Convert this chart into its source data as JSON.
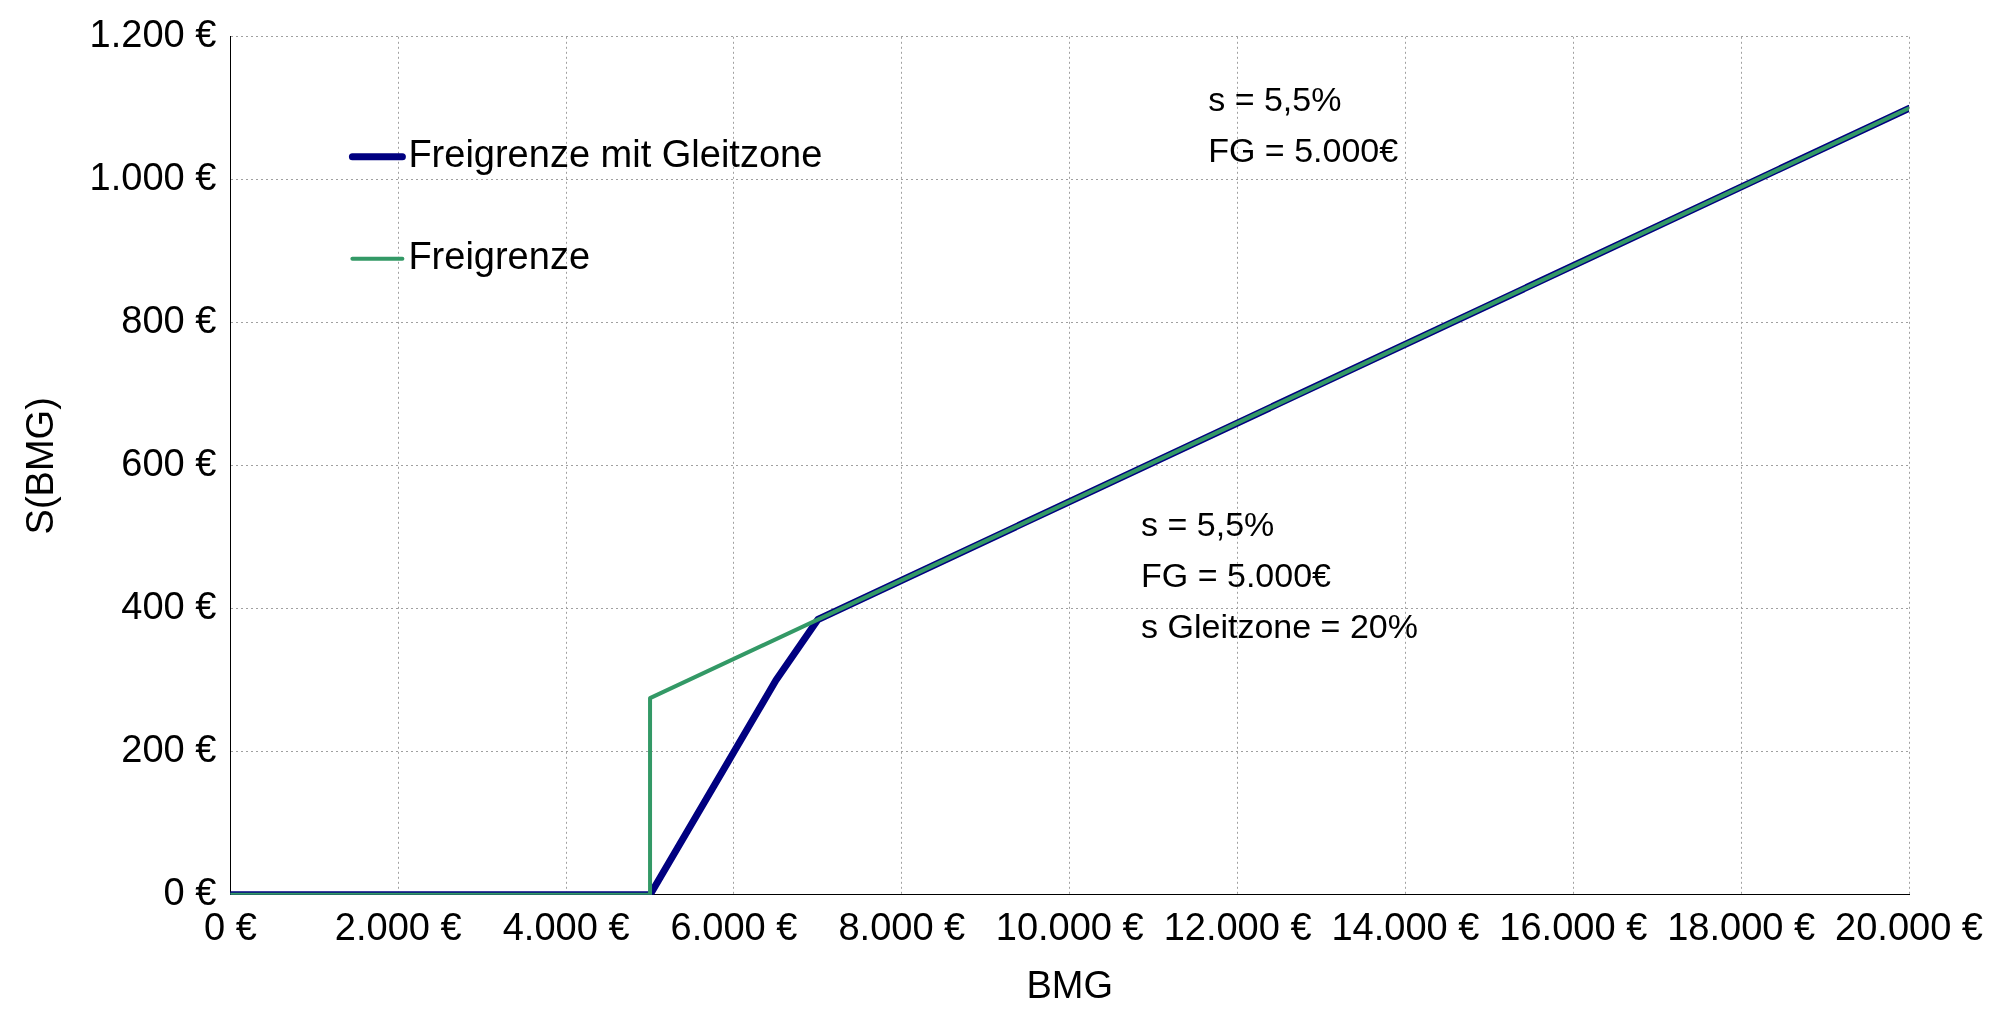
{
  "chart_data": {
    "type": "line",
    "xlabel": "BMG",
    "ylabel": "S(BMG)",
    "xlim": [
      0,
      20000
    ],
    "xticks": [
      {
        "value": 0,
        "label": "0 €"
      },
      {
        "value": 2000,
        "label": "2.000 €"
      },
      {
        "value": 4000,
        "label": "4.000 €"
      },
      {
        "value": 6000,
        "label": "6.000 €"
      },
      {
        "value": 8000,
        "label": "8.000 €"
      },
      {
        "value": 10000,
        "label": "10.000 €"
      },
      {
        "value": 12000,
        "label": "12.000 €"
      },
      {
        "value": 14000,
        "label": "14.000 €"
      },
      {
        "value": 16000,
        "label": "16.000 €"
      },
      {
        "value": 18000,
        "label": "18.000 €"
      },
      {
        "value": 20000,
        "label": "20.000 €"
      }
    ],
    "ylim": [
      0,
      1200
    ],
    "yticks": [
      {
        "value": 0,
        "label": "0 €"
      },
      {
        "value": 200,
        "label": "200 €"
      },
      {
        "value": 400,
        "label": "400 €"
      },
      {
        "value": 600,
        "label": "600 €"
      },
      {
        "value": 800,
        "label": "800 €"
      },
      {
        "value": 1000,
        "label": "1.000 €"
      },
      {
        "value": 1200,
        "label": "1.200 €"
      }
    ],
    "series": [
      {
        "name": "Freigrenze mit Gleitzone",
        "color": "#000080",
        "x": [
          0,
          5000,
          6000,
          6500,
          7000,
          20000
        ],
        "values": [
          0,
          0,
          200,
          300,
          385,
          1100
        ]
      },
      {
        "name": "Freigrenze",
        "color": "#339966",
        "x": [
          0,
          5000,
          5000,
          20000
        ],
        "values": [
          0,
          0,
          275,
          1100
        ]
      }
    ],
    "annotations": [
      "s = 5,5%\nFG = 5.000€",
      "s = 5,5%\nFG = 5.000€\ns Gleitzone = 20%"
    ],
    "grid": true,
    "legend": "top left",
    "marker": "none",
    "line_style": "solid"
  }
}
